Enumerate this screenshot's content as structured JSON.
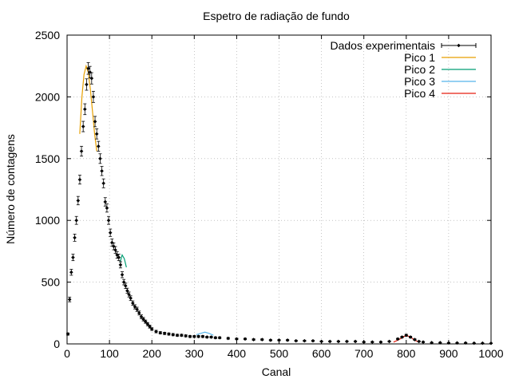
{
  "chart_data": {
    "type": "scatter",
    "title": "Espetro de radiação de fundo",
    "xlabel": "Canal",
    "ylabel": "Número de contagens",
    "xlim": [
      0,
      1000
    ],
    "ylim": [
      0,
      2500
    ],
    "xticks": [
      0,
      100,
      200,
      300,
      400,
      500,
      600,
      700,
      800,
      900,
      1000
    ],
    "yticks": [
      0,
      500,
      1000,
      1500,
      2000,
      2500
    ],
    "grid": true,
    "legend_position": "top-right",
    "series": [
      {
        "name": "Dados experimentais",
        "kind": "points-with-errorbars",
        "color": "#000000",
        "x": [
          2,
          6,
          10,
          14,
          18,
          22,
          26,
          30,
          34,
          38,
          42,
          46,
          50,
          54,
          58,
          62,
          66,
          70,
          74,
          78,
          82,
          86,
          90,
          94,
          98,
          102,
          106,
          110,
          114,
          118,
          122,
          126,
          130,
          134,
          138,
          142,
          146,
          150,
          155,
          160,
          165,
          170,
          175,
          180,
          185,
          190,
          195,
          200,
          210,
          220,
          230,
          240,
          250,
          260,
          270,
          280,
          290,
          300,
          310,
          320,
          330,
          340,
          350,
          360,
          380,
          400,
          420,
          440,
          460,
          480,
          500,
          520,
          540,
          560,
          580,
          600,
          620,
          640,
          660,
          680,
          700,
          720,
          740,
          760,
          780,
          790,
          800,
          810,
          820,
          830,
          840,
          860,
          880,
          900,
          920,
          940,
          960,
          980,
          1000
        ],
        "y": [
          80,
          360,
          580,
          700,
          860,
          1000,
          1160,
          1330,
          1560,
          1760,
          1900,
          2100,
          2230,
          2200,
          2150,
          2000,
          1800,
          1700,
          1600,
          1500,
          1400,
          1300,
          1150,
          1100,
          1000,
          900,
          820,
          790,
          760,
          720,
          700,
          640,
          560,
          500,
          470,
          430,
          400,
          370,
          330,
          300,
          280,
          250,
          220,
          200,
          180,
          160,
          140,
          120,
          100,
          90,
          85,
          80,
          75,
          70,
          70,
          65,
          60,
          60,
          60,
          60,
          55,
          55,
          50,
          50,
          45,
          40,
          40,
          35,
          35,
          30,
          30,
          30,
          25,
          25,
          25,
          20,
          20,
          20,
          20,
          20,
          15,
          15,
          15,
          20,
          40,
          55,
          70,
          55,
          35,
          20,
          15,
          10,
          10,
          8,
          8,
          8,
          6,
          6,
          5
        ],
        "yerr": [
          9,
          19,
          24,
          26,
          29,
          32,
          34,
          36,
          40,
          42,
          44,
          46,
          47,
          47,
          46,
          45,
          42,
          41,
          40,
          39,
          37,
          36,
          34,
          33,
          32,
          30,
          29,
          28,
          28,
          27,
          26,
          25,
          24,
          22,
          22,
          21,
          20,
          19,
          18,
          17,
          17,
          16,
          15,
          14,
          13,
          13,
          12,
          11,
          10,
          9,
          9,
          9,
          9,
          8,
          8,
          8,
          8,
          8,
          8,
          8,
          7,
          7,
          7,
          7,
          7,
          6,
          6,
          6,
          6,
          5,
          5,
          5,
          5,
          5,
          5,
          4,
          4,
          4,
          4,
          4,
          4,
          4,
          4,
          4,
          6,
          7,
          8,
          7,
          6,
          4,
          4,
          3,
          3,
          3,
          3,
          3,
          2,
          2,
          2
        ]
      },
      {
        "name": "Pico 1",
        "kind": "line",
        "color": "#e69f00",
        "x": [
          30,
          35,
          40,
          45,
          50,
          55,
          60,
          65,
          70
        ],
        "y": [
          1700,
          2000,
          2180,
          2250,
          2200,
          2060,
          1880,
          1700,
          1560
        ]
      },
      {
        "name": "Pico 2",
        "kind": "line",
        "color": "#009e73",
        "x": [
          125,
          130,
          135,
          140
        ],
        "y": [
          660,
          720,
          690,
          620
        ]
      },
      {
        "name": "Pico 3",
        "kind": "line",
        "color": "#56b4e9",
        "x": [
          305,
          315,
          325,
          335,
          345
        ],
        "y": [
          75,
          85,
          95,
          85,
          70
        ]
      },
      {
        "name": "Pico 4",
        "kind": "line",
        "color": "#e51e10",
        "x": [
          770,
          780,
          790,
          800,
          810,
          820,
          830
        ],
        "y": [
          15,
          30,
          50,
          70,
          55,
          30,
          15
        ]
      }
    ]
  }
}
